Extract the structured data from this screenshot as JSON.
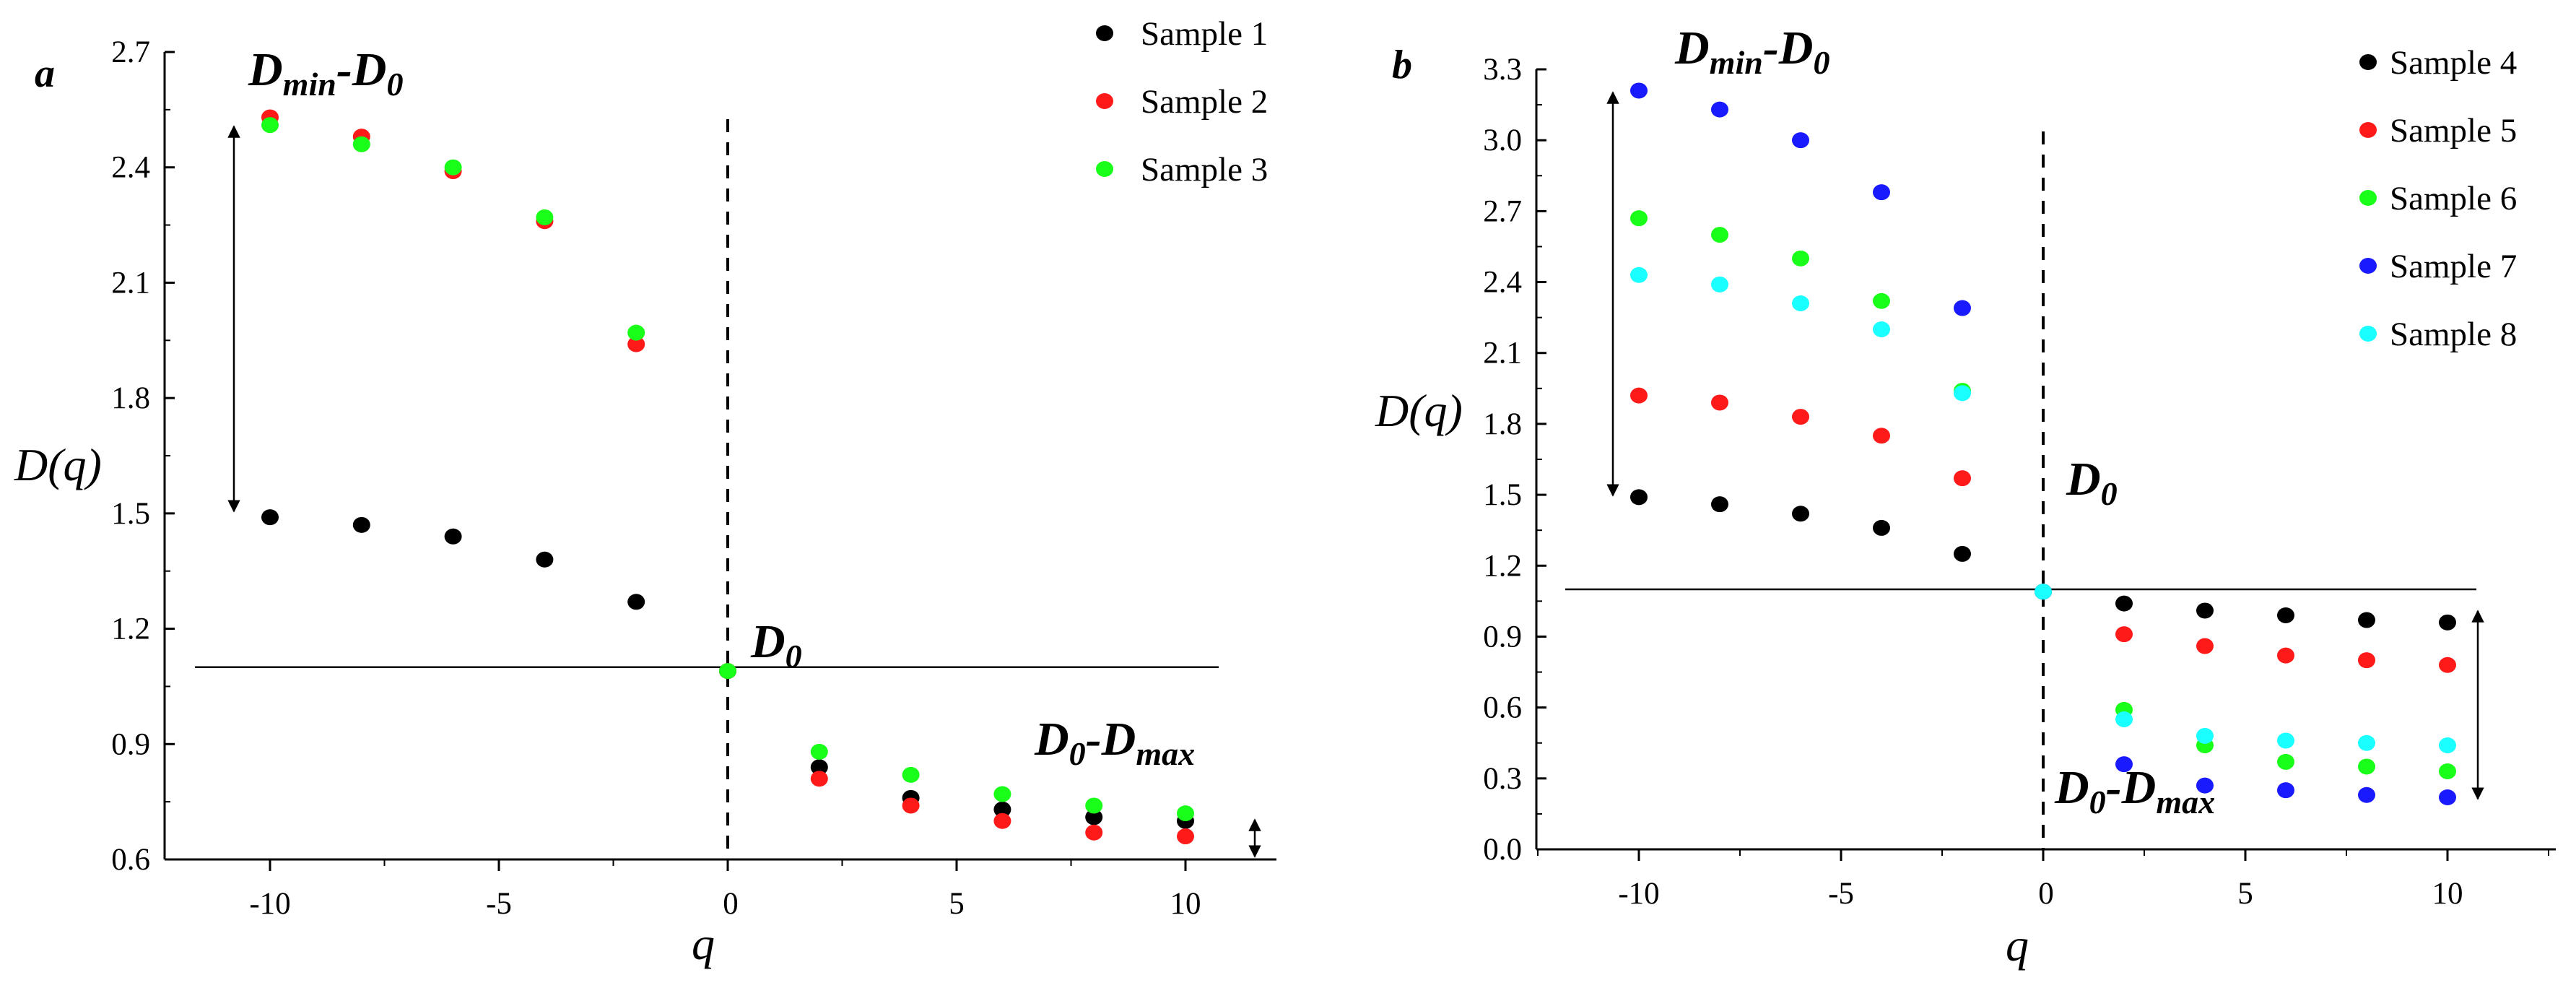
{
  "figure": {
    "colors": {
      "Sample 1": "#000000",
      "Sample 2": "#ff1a1a",
      "Sample 3": "#1aff1a",
      "Sample 4": "#000000",
      "Sample 5": "#ff1a1a",
      "Sample 6": "#1aff1a",
      "Sample 7": "#1a1aff",
      "Sample 8": "#1affff"
    }
  },
  "chart_data": [
    {
      "panel_label": "a",
      "type": "scatter",
      "xlabel": "q",
      "ylabel": "D(q)",
      "xlim": [
        -12,
        12
      ],
      "ylim": [
        0.6,
        2.7
      ],
      "xticks": [
        -10,
        -5,
        0,
        5,
        10
      ],
      "yticks": [
        0.6,
        0.9,
        1.2,
        1.5,
        1.8,
        2.1,
        2.4,
        2.7
      ],
      "xtick_labels": [
        "-10",
        "-5",
        "0",
        "5",
        "10"
      ],
      "ytick_labels": [
        "0.6",
        "0.9",
        "1.2",
        "1.5",
        "1.8",
        "2.1",
        "2.4",
        "2.7"
      ],
      "reference_line_y": 1.1,
      "series": [
        {
          "name": "Sample 1",
          "x": [
            -10,
            -8,
            -6,
            -4,
            -2,
            0,
            2,
            4,
            6,
            8,
            10
          ],
          "y": [
            1.49,
            1.47,
            1.44,
            1.38,
            1.27,
            1.09,
            0.84,
            0.76,
            0.73,
            0.71,
            0.7
          ]
        },
        {
          "name": "Sample 2",
          "x": [
            -10,
            -8,
            -6,
            -4,
            -2,
            0,
            2,
            4,
            6,
            8,
            10
          ],
          "y": [
            2.53,
            2.48,
            2.39,
            2.26,
            1.94,
            1.09,
            0.81,
            0.74,
            0.7,
            0.67,
            0.66
          ]
        },
        {
          "name": "Sample 3",
          "x": [
            -10,
            -8,
            -6,
            -4,
            -2,
            0,
            2,
            4,
            6,
            8,
            10
          ],
          "y": [
            2.51,
            2.46,
            2.4,
            2.27,
            1.97,
            1.09,
            0.88,
            0.82,
            0.77,
            0.74,
            0.72
          ]
        }
      ],
      "annotations": [
        {
          "main": "D",
          "sub": "min",
          "rest": "-D",
          "sub2": "0"
        },
        {
          "main": "D",
          "sub": "0",
          "rest": "",
          "sub2": ""
        },
        {
          "main": "D",
          "sub": "0",
          "rest": "-D",
          "sub2": "max"
        }
      ]
    },
    {
      "panel_label": "b",
      "type": "scatter",
      "xlabel": "q",
      "ylabel": "D(q)",
      "xlim": [
        -12,
        12.5
      ],
      "ylim": [
        0.0,
        3.3
      ],
      "xticks": [
        -10,
        -5,
        0,
        5,
        10
      ],
      "yticks": [
        0.0,
        0.3,
        0.6,
        0.9,
        1.2,
        1.5,
        1.8,
        2.1,
        2.4,
        2.7,
        3.0,
        3.3
      ],
      "xtick_labels": [
        "-10",
        "-5",
        "0",
        "5",
        "10"
      ],
      "ytick_labels": [
        "0.0",
        "0.3",
        "0.6",
        "0.9",
        "1.2",
        "1.5",
        "1.8",
        "2.1",
        "2.4",
        "2.7",
        "3.0",
        "3.3"
      ],
      "reference_line_y": 1.1,
      "series": [
        {
          "name": "Sample 4",
          "x": [
            -10,
            -8,
            -6,
            -4,
            -2,
            0,
            2,
            4,
            6,
            8,
            10
          ],
          "y": [
            1.49,
            1.46,
            1.42,
            1.36,
            1.25,
            1.09,
            1.04,
            1.01,
            0.99,
            0.97,
            0.96
          ]
        },
        {
          "name": "Sample 5",
          "x": [
            -10,
            -8,
            -6,
            -4,
            -2,
            0,
            2,
            4,
            6,
            8,
            10
          ],
          "y": [
            1.92,
            1.89,
            1.83,
            1.75,
            1.57,
            1.09,
            0.91,
            0.86,
            0.82,
            0.8,
            0.78
          ]
        },
        {
          "name": "Sample 6",
          "x": [
            -10,
            -8,
            -6,
            -4,
            -2,
            0,
            2,
            4,
            6,
            8,
            10
          ],
          "y": [
            2.67,
            2.6,
            2.5,
            2.32,
            1.94,
            1.09,
            0.59,
            0.44,
            0.37,
            0.35,
            0.33
          ]
        },
        {
          "name": "Sample 7",
          "x": [
            -10,
            -8,
            -6,
            -4,
            -2,
            0,
            2,
            4,
            6,
            8,
            10
          ],
          "y": [
            3.21,
            3.13,
            3.0,
            2.78,
            2.29,
            1.09,
            0.36,
            0.27,
            0.25,
            0.23,
            0.22
          ]
        },
        {
          "name": "Sample 8",
          "x": [
            -10,
            -8,
            -6,
            -4,
            -2,
            0,
            2,
            4,
            6,
            8,
            10
          ],
          "y": [
            2.43,
            2.39,
            2.31,
            2.2,
            1.93,
            1.09,
            0.55,
            0.48,
            0.46,
            0.45,
            0.44
          ]
        }
      ],
      "annotations": [
        {
          "main": "D",
          "sub": "min",
          "rest": "-D",
          "sub2": "0"
        },
        {
          "main": "D",
          "sub": "0",
          "rest": "",
          "sub2": ""
        },
        {
          "main": "D",
          "sub": "0",
          "rest": "-D",
          "sub2": "max"
        }
      ]
    }
  ]
}
